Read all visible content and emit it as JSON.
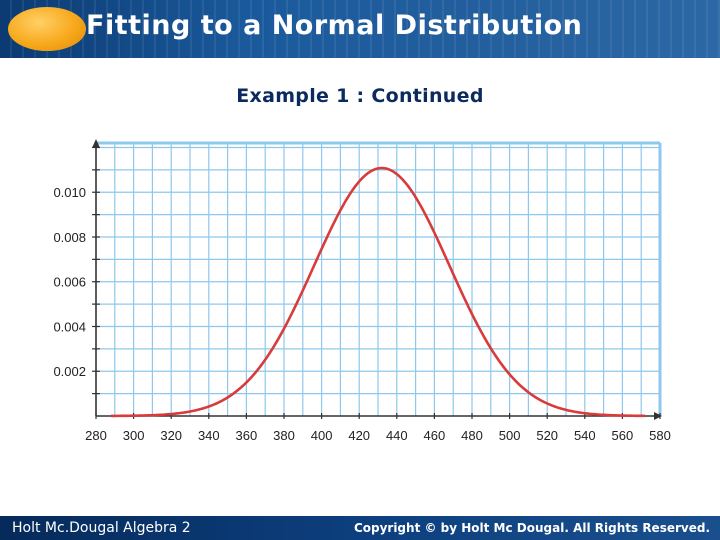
{
  "header": {
    "title": "Fitting to a Normal Distribution",
    "accent": "#f7a81b",
    "bar_color": "#1a5a9c"
  },
  "subtitle": "Example 1 : Continued",
  "footer": {
    "left": "Holt Mc.Dougal Algebra 2",
    "right": "Copyright © by Holt Mc Dougal. All Rights Reserved."
  },
  "chart_data": {
    "type": "line",
    "title": "",
    "xlabel": "",
    "ylabel": "",
    "xlim": [
      280,
      580
    ],
    "ylim": [
      0,
      0.0122
    ],
    "x_ticks": [
      "280",
      "300",
      "320",
      "340",
      "360",
      "380",
      "400",
      "420",
      "440",
      "460",
      "480",
      "500",
      "520",
      "540",
      "560",
      "580"
    ],
    "y_ticks": [
      "0.002",
      "0.004",
      "0.006",
      "0.008",
      "0.010"
    ],
    "grid": true,
    "grid_color": "#8ec8ec",
    "series": [
      {
        "color": "#d93a3a",
        "distribution": "normal",
        "mean": 432,
        "sd": 36,
        "x": [
          288,
          300,
          320,
          340,
          350,
          360,
          370,
          380,
          390,
          400,
          410,
          420,
          425,
          432,
          440,
          450,
          460,
          470,
          480,
          490,
          500,
          510,
          520,
          540,
          560,
          572
        ],
        "y": [
          4e-05,
          0.00014,
          0.00032,
          0.00059,
          0.00084,
          0.00149,
          0.00218,
          0.00305,
          0.00408,
          0.00671,
          0.00835,
          0.00983,
          0.01057,
          0.01101,
          0.01073,
          0.00989,
          0.00877,
          0.00736,
          0.00573,
          0.00414,
          0.0027,
          0.00152,
          0.00078,
          0.00034,
          0.00011,
          6e-05
        ]
      }
    ]
  }
}
